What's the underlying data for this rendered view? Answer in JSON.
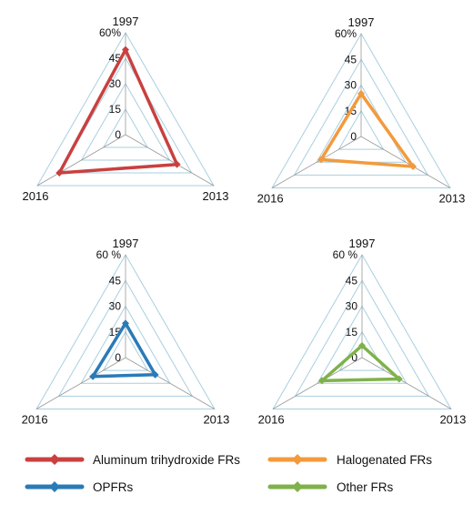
{
  "chart_data": [
    {
      "type": "radar",
      "axes": [
        "1997",
        "2013",
        "2016"
      ],
      "ticks": [
        "0",
        "15",
        "30",
        "45",
        "60%"
      ],
      "rlim": [
        0,
        60
      ],
      "grid": true,
      "series": [
        {
          "name": "Aluminum trihydroxide FRs",
          "color": "#c9403f",
          "values": [
            50,
            35,
            45
          ]
        }
      ]
    },
    {
      "type": "radar",
      "axes": [
        "1997",
        "2013",
        "2016"
      ],
      "ticks": [
        "0",
        "15",
        "30",
        "45",
        "60%"
      ],
      "rlim": [
        0,
        60
      ],
      "grid": true,
      "series": [
        {
          "name": "Halogenated FRs",
          "color": "#f39a3c",
          "values": [
            25,
            35,
            27
          ]
        }
      ]
    },
    {
      "type": "radar",
      "axes": [
        "1997",
        "2013",
        "2016"
      ],
      "ticks": [
        "0",
        "15",
        "30",
        "45",
        "60 %"
      ],
      "rlim": [
        0,
        60
      ],
      "grid": true,
      "series": [
        {
          "name": "OPFRs",
          "color": "#2a7ab8",
          "values": [
            20,
            20,
            22
          ]
        }
      ]
    },
    {
      "type": "radar",
      "axes": [
        "1997",
        "2013",
        "2016"
      ],
      "ticks": [
        "0",
        "15",
        "30",
        "45",
        "60 %"
      ],
      "rlim": [
        0,
        60
      ],
      "grid": true,
      "series": [
        {
          "name": "Other FRs",
          "color": "#7fb24a",
          "values": [
            7,
            25,
            27
          ]
        }
      ]
    }
  ],
  "legend": [
    {
      "label": "Aluminum trihydroxide FRs",
      "color": "#c9403f",
      "icon": "diamond-line-marker"
    },
    {
      "label": "Halogenated FRs",
      "color": "#f39a3c",
      "icon": "diamond-line-marker"
    },
    {
      "label": "OPFRs",
      "color": "#2a7ab8",
      "icon": "diamond-line-marker"
    },
    {
      "label": "Other FRs",
      "color": "#7fb24a",
      "icon": "diamond-line-marker"
    }
  ],
  "style": {
    "grid_color": "#a9cfe0",
    "spoke_color": "#999999"
  }
}
